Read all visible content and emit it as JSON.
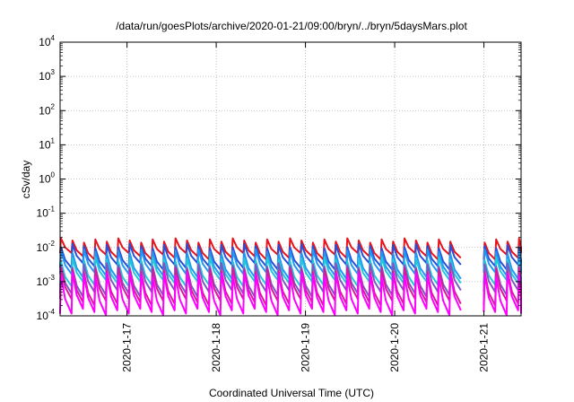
{
  "chart_data": {
    "type": "line",
    "title": "/data/run/goesPlots/archive/2020-01-21/09:00/bryn/../bryn/5daysMars.plot",
    "xlabel": "Coordinated Universal Time (UTC)",
    "ylabel": "cSv/day",
    "yscale": "log",
    "ylim": [
      0.0001,
      10000
    ],
    "y_ticks": [
      {
        "base": "10",
        "exp": "4",
        "value": 10000
      },
      {
        "base": "10",
        "exp": "3",
        "value": 1000
      },
      {
        "base": "10",
        "exp": "2",
        "value": 100
      },
      {
        "base": "10",
        "exp": "1",
        "value": 10
      },
      {
        "base": "10",
        "exp": "0",
        "value": 1
      },
      {
        "base": "10",
        "exp": "-1",
        "value": 0.1
      },
      {
        "base": "10",
        "exp": "-2",
        "value": 0.01
      },
      {
        "base": "10",
        "exp": "-3",
        "value": 0.001
      },
      {
        "base": "10",
        "exp": "-4",
        "value": 0.0001
      }
    ],
    "xlim": [
      "2020-01-16T06:00",
      "2020-01-21T10:00"
    ],
    "x_ticks": [
      {
        "label": "2020-1-17",
        "value": "2020-01-17"
      },
      {
        "label": "2020-1-18",
        "value": "2020-01-18"
      },
      {
        "label": "2020-1-19",
        "value": "2020-01-19"
      },
      {
        "label": "2020-1-20",
        "value": "2020-01-20"
      },
      {
        "label": "2020-1-21",
        "value": "2020-01-21"
      }
    ],
    "grid": true,
    "legend": "none",
    "gap_start": "2020-01-20T18:00",
    "gap_end": "2020-01-20T21:00",
    "sawtooth_period_hours": 3.08,
    "series": [
      {
        "color": "#e8141c",
        "peak": 0.016,
        "trough": 0.0055
      },
      {
        "color": "#2a4fd6",
        "peak": 0.011,
        "trough": 0.0028
      },
      {
        "color": "#2196f3",
        "peak": 0.0075,
        "trough": 0.0015
      },
      {
        "color": "#26c6da",
        "peak": 0.0045,
        "trough": 0.0009
      },
      {
        "color": "#7e57c2",
        "peak": 0.003,
        "trough": 0.00045
      },
      {
        "color": "#d81b9a",
        "peak": 0.0022,
        "trough": 0.00025
      },
      {
        "color": "#ff00ff",
        "peak": 0.0016,
        "trough": 0.00013
      }
    ]
  }
}
